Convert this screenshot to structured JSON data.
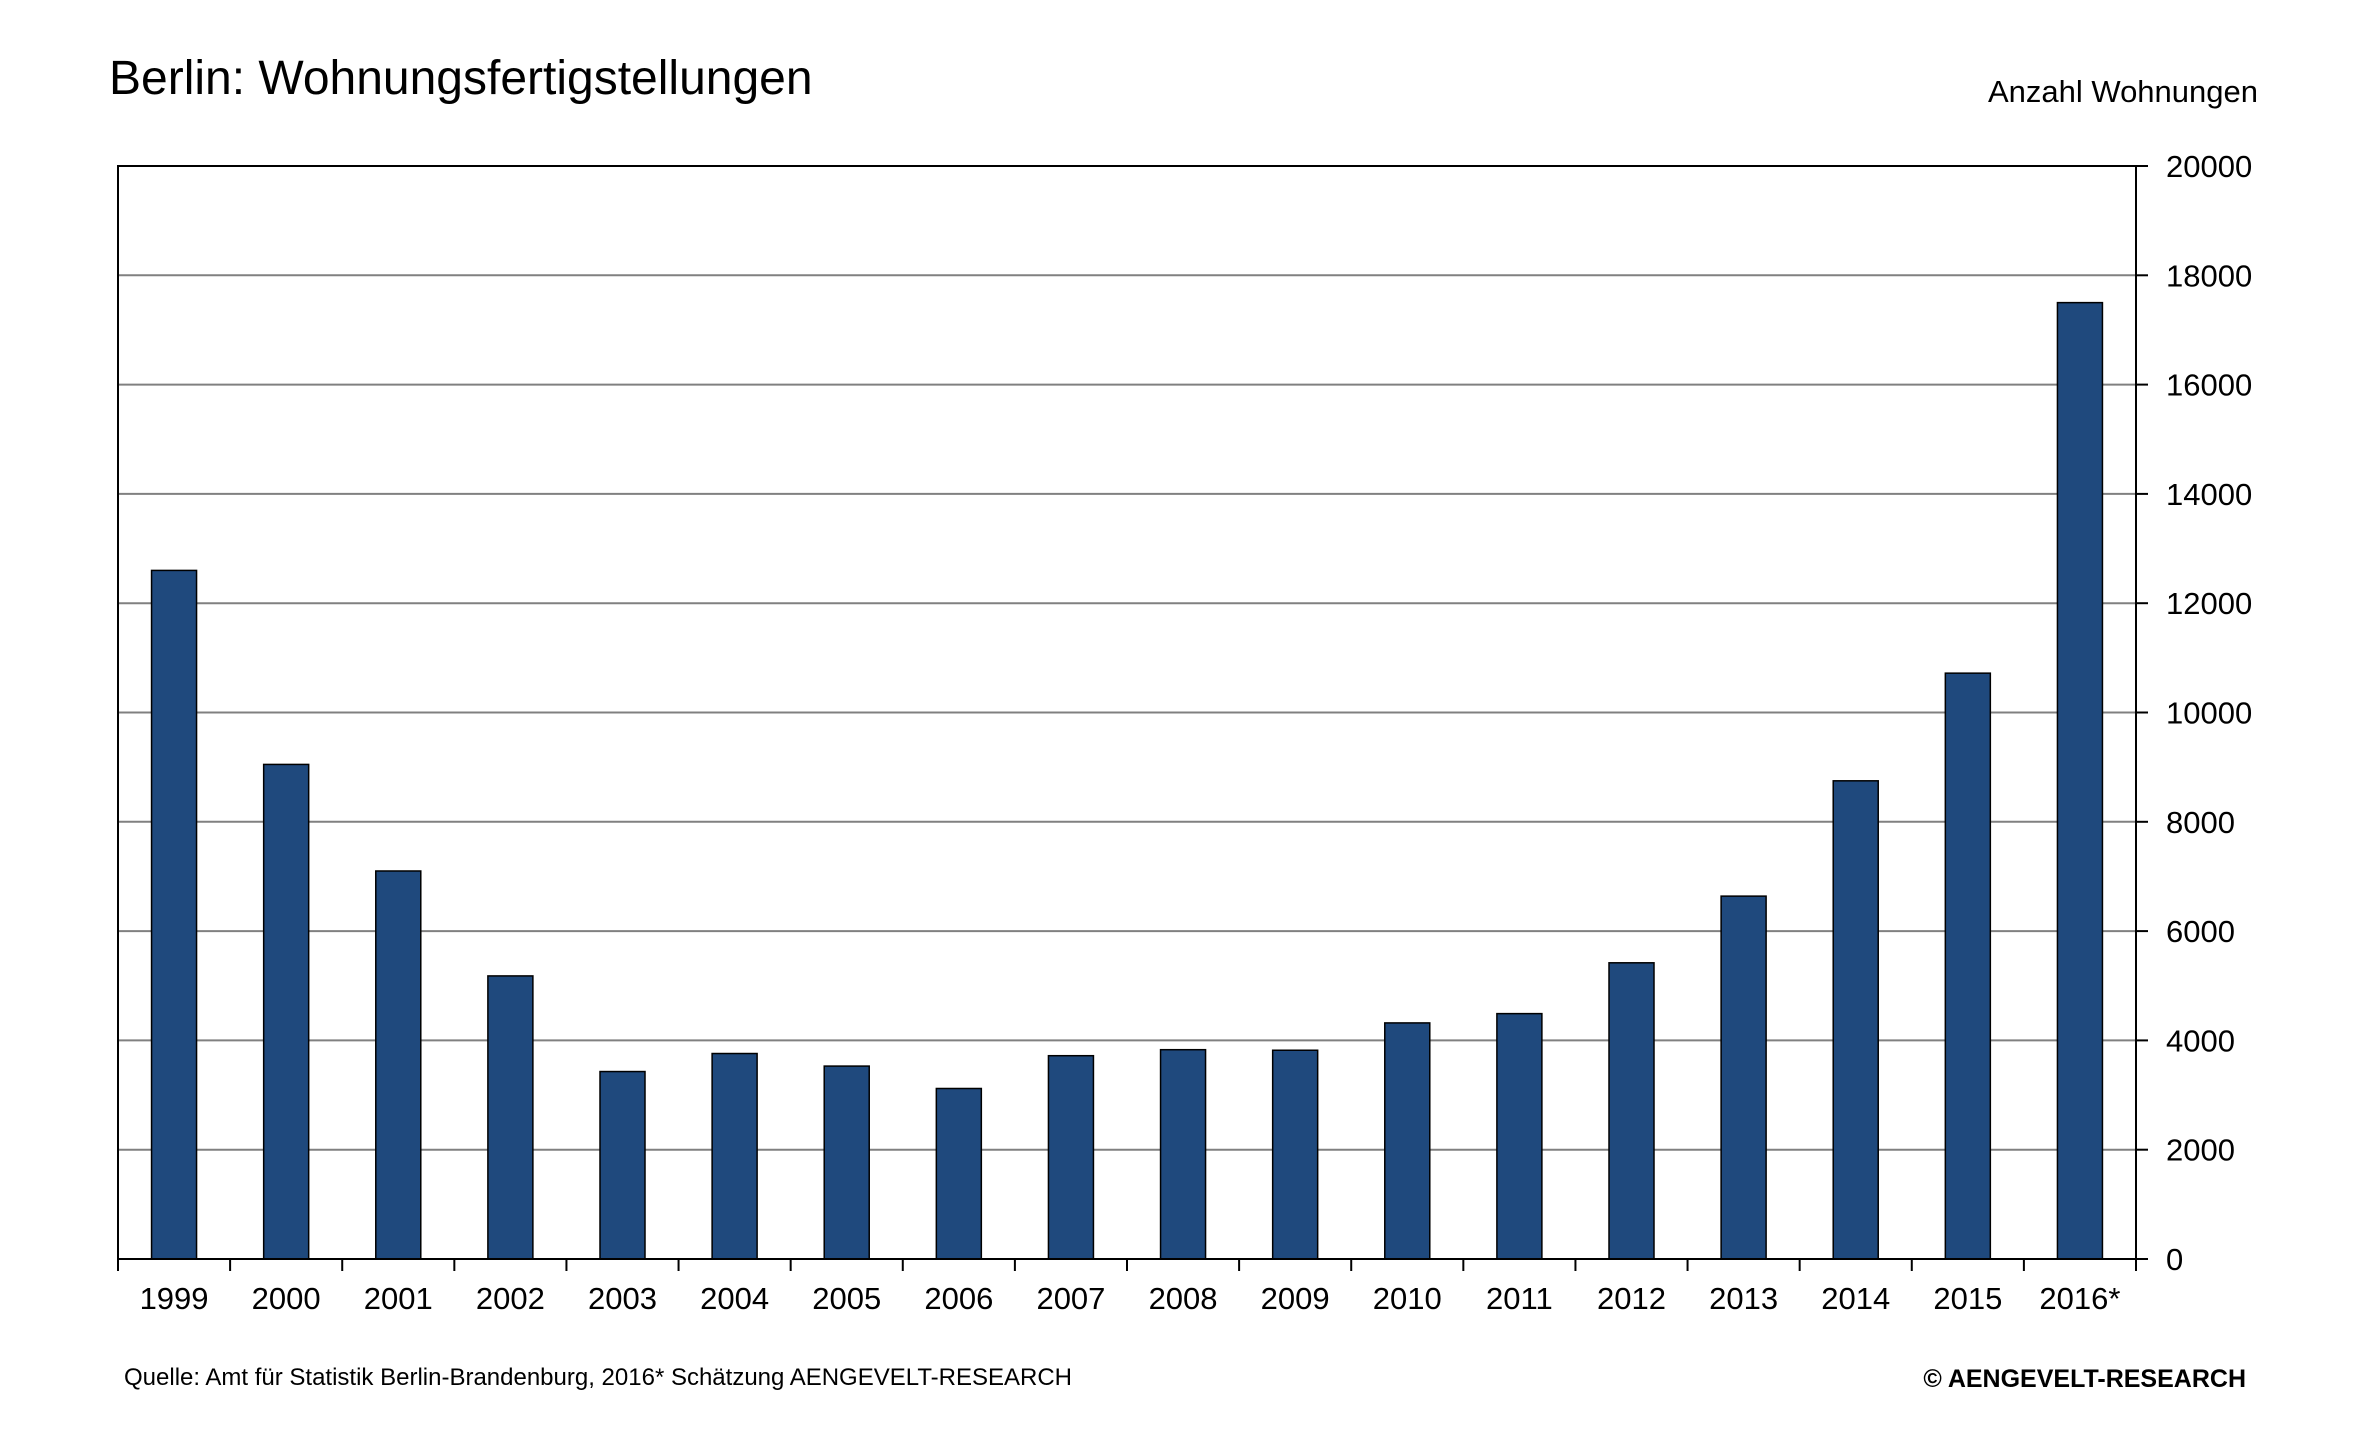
{
  "chart_data": {
    "type": "bar",
    "title": "Berlin: Wohnungsfertigstellungen",
    "ylabel": "Anzahl Wohnungen",
    "xlabel": "",
    "categories": [
      "1999",
      "2000",
      "2001",
      "2002",
      "2003",
      "2004",
      "2005",
      "2006",
      "2007",
      "2008",
      "2009",
      "2010",
      "2011",
      "2012",
      "2013",
      "2014",
      "2015",
      "2016*"
    ],
    "values": [
      12600,
      9050,
      7100,
      5180,
      3430,
      3760,
      3530,
      3120,
      3720,
      3830,
      3820,
      4320,
      4490,
      5420,
      6640,
      8750,
      10720,
      17500
    ],
    "ylim": [
      0,
      20000
    ],
    "yticks": [
      0,
      2000,
      4000,
      6000,
      8000,
      10000,
      12000,
      14000,
      16000,
      18000,
      20000
    ],
    "y_axis_side": "right",
    "grid": true,
    "legend": "none",
    "bar_color": "#1F497D",
    "source_note": "Quelle: Amt für Statistik Berlin-Brandenburg, 2016* Schätzung AENGEVELT-RESEARCH",
    "copyright": "©  AENGEVELT-RESEARCH"
  }
}
